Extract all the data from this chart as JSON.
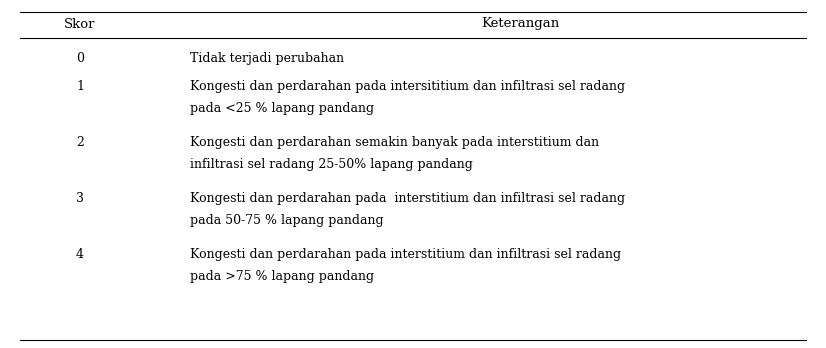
{
  "col_headers": [
    "Skor",
    "Keterangan"
  ],
  "rows": [
    {
      "skor": "0",
      "line1": "Tidak terjadi perubahan",
      "line2": ""
    },
    {
      "skor": "1",
      "line1": "Kongesti dan perdarahan pada intersititium dan infiltrasi sel radang",
      "line2": "pada <25 % lapang pandang"
    },
    {
      "skor": "2",
      "line1": "Kongesti dan perdarahan semakin banyak pada interstitium dan",
      "line2": "infiltrasi sel radang 25-50% lapang pandang"
    },
    {
      "skor": "3",
      "line1": "Kongesti dan perdarahan pada  interstitium dan infiltrasi sel radang",
      "line2": "pada 50-75 % lapang pandang"
    },
    {
      "skor": "4",
      "line1": "Kongesti dan perdarahan pada interstitium dan infiltrasi sel radang",
      "line2": "pada >75 % lapang pandang"
    }
  ],
  "font_size": 9.0,
  "header_font_size": 9.5,
  "bg_color": "#ffffff",
  "text_color": "#000000",
  "line_color": "#000000"
}
